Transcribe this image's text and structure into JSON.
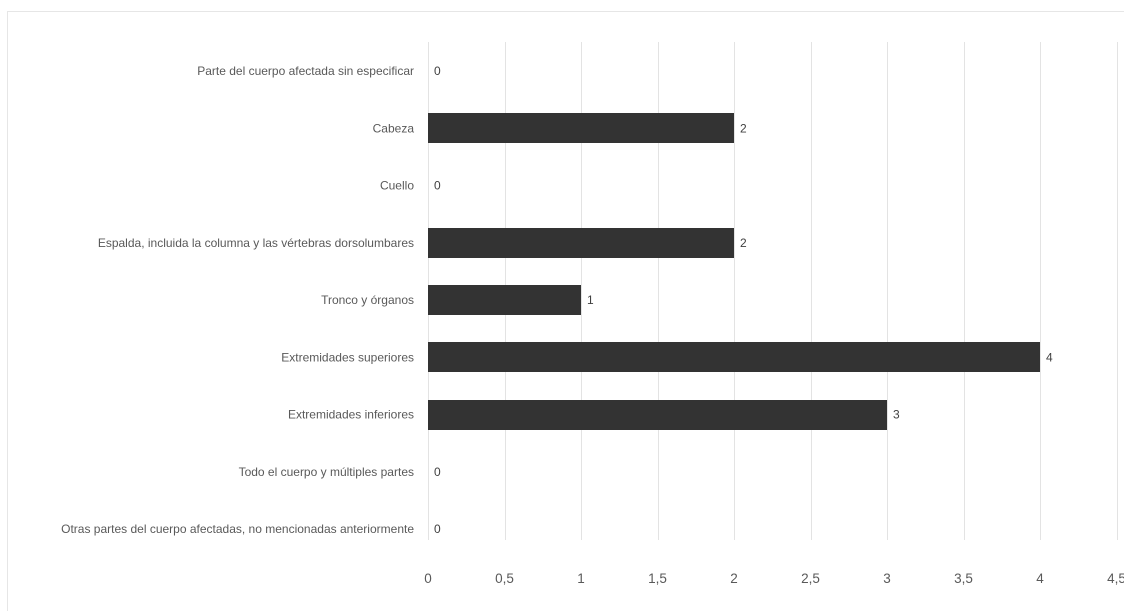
{
  "chart_data": {
    "type": "bar",
    "orientation": "horizontal",
    "title": "",
    "xlabel": "",
    "ylabel": "",
    "categories": [
      "Parte del cuerpo afectada sin especificar",
      "Cabeza",
      "Cuello",
      "Espalda, incluida la columna y las vértebras dorsolumbares",
      "Tronco y órganos",
      "Extremidades superiores",
      "Extremidades inferiores",
      "Todo el cuerpo y múltiples partes",
      "Otras partes del cuerpo afectadas, no mencionadas anteriormente"
    ],
    "values": [
      0,
      2,
      0,
      2,
      1,
      4,
      3,
      0,
      0
    ],
    "value_labels": [
      "0",
      "2",
      "0",
      "2",
      "1",
      "4",
      "3",
      "0",
      "0"
    ],
    "xlim": [
      0,
      4.5
    ],
    "x_ticks": [
      0,
      0.5,
      1,
      1.5,
      2,
      2.5,
      3,
      3.5,
      4,
      4.5
    ],
    "x_tick_labels": [
      "0",
      "0,5",
      "1",
      "1,5",
      "2",
      "2,5",
      "3",
      "3,5",
      "4",
      "4,5"
    ],
    "bar_color": "#333333",
    "grid": true,
    "legend": "none"
  }
}
